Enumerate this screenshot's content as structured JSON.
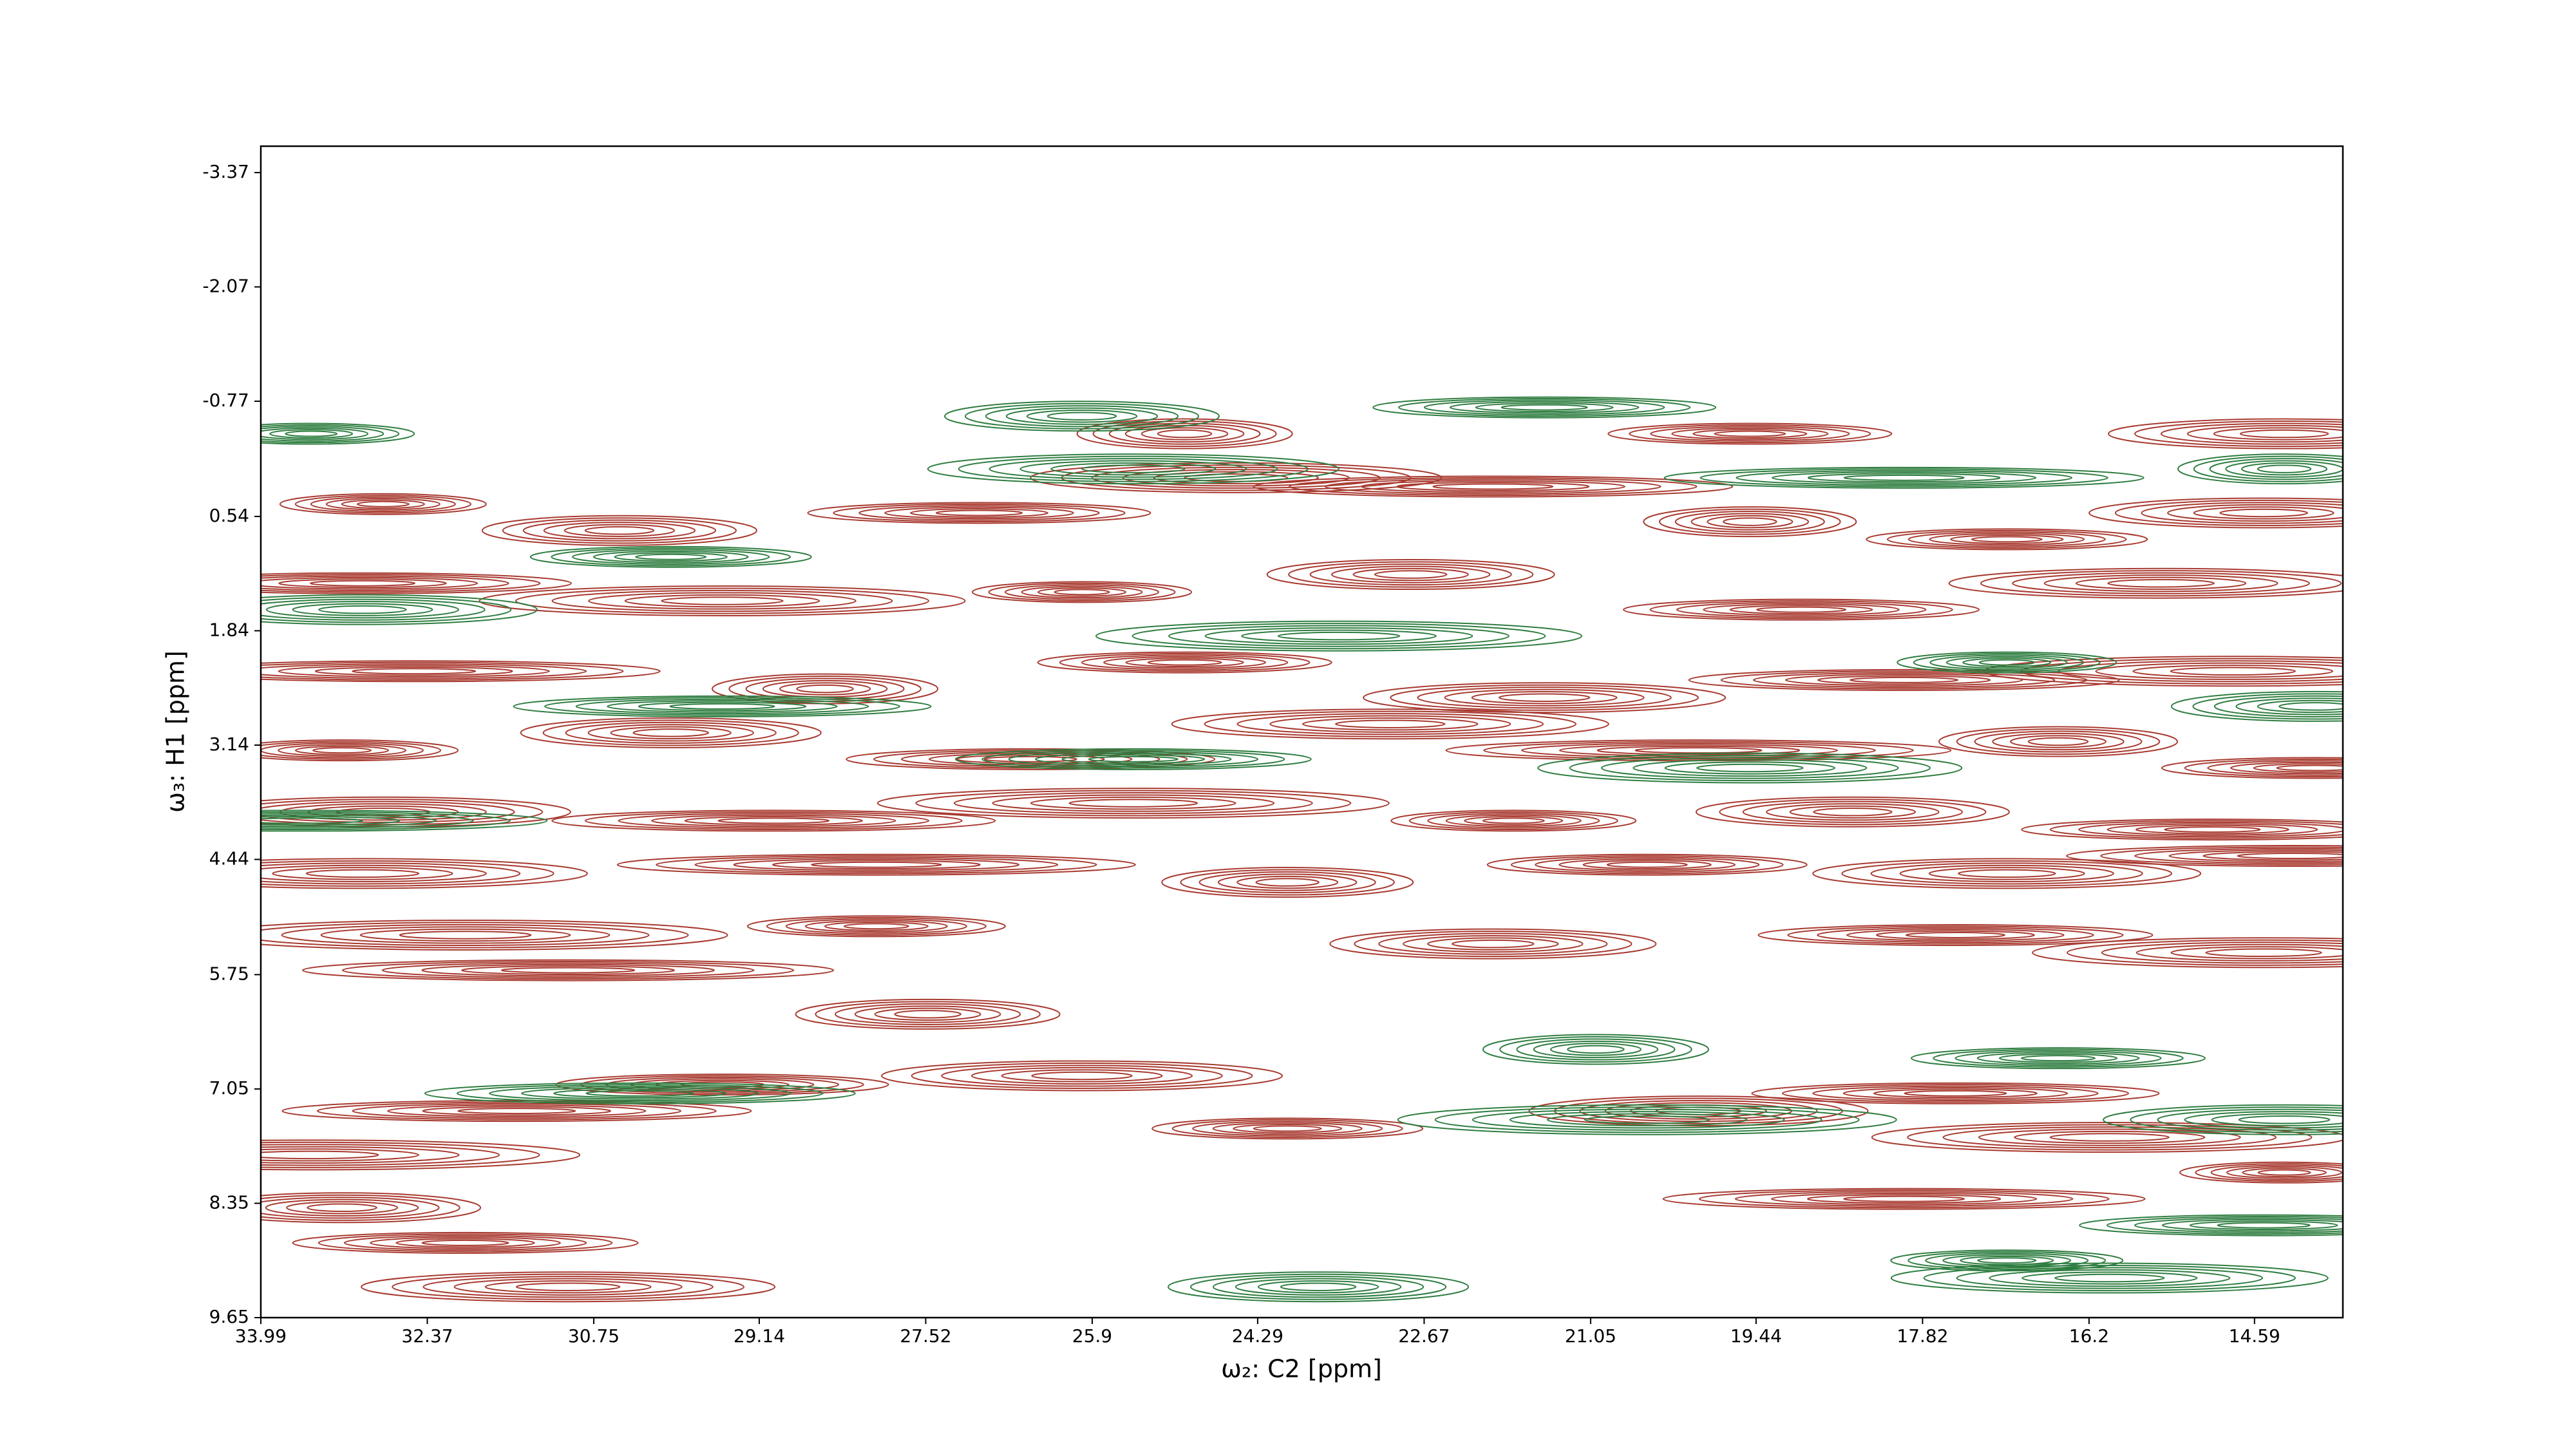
{
  "chart_data": {
    "type": "contour",
    "xlabel": "ω₂: C2 [ppm]",
    "ylabel": "ω₃: H1 [ppm]",
    "xlim": [
      33.99,
      13.73
    ],
    "ylim": [
      9.65,
      -3.67
    ],
    "xticks": [
      33.99,
      32.37,
      30.75,
      29.14,
      27.52,
      25.9,
      24.29,
      22.67,
      21.05,
      19.44,
      17.82,
      16.2,
      14.59
    ],
    "yticks": [
      -3.37,
      -2.07,
      -0.77,
      0.54,
      1.84,
      3.14,
      4.44,
      5.75,
      7.05,
      8.35,
      9.65
    ],
    "series": [
      {
        "color": "#a83a30",
        "x": [
          32.8,
          30.5,
          27.0,
          24.5,
          22.0,
          19.5,
          17.0,
          14.5,
          33.0,
          29.5,
          26.0,
          22.8,
          19.0,
          15.5,
          32.5,
          28.5,
          25.0,
          21.5,
          18.0,
          14.8,
          33.2,
          30.0,
          26.5,
          23.0,
          20.0,
          16.5,
          14.0,
          32.8,
          29.0,
          25.5,
          21.8,
          18.5,
          15.0,
          33.0,
          28.0,
          24.0,
          20.5,
          17.0,
          14.2,
          32.0,
          28.0,
          22.0,
          17.5,
          14.5,
          31.0,
          27.5,
          29.5,
          26.0,
          31.5,
          33.5,
          24.0,
          20.0,
          17.5,
          16.0,
          14.3,
          33.2,
          32.0,
          31.0,
          18.0,
          25.0,
          19.5,
          14.3
        ],
        "values": [
          0.4,
          0.7,
          0.5,
          0.1,
          0.2,
          0.6,
          0.8,
          0.5,
          1.3,
          1.5,
          1.4,
          1.2,
          1.6,
          1.3,
          2.3,
          2.5,
          2.2,
          2.6,
          2.4,
          2.3,
          3.2,
          3.0,
          3.3,
          2.9,
          3.2,
          3.1,
          3.4,
          3.9,
          4.0,
          3.8,
          4.0,
          3.9,
          4.1,
          4.6,
          4.5,
          4.7,
          4.5,
          4.6,
          4.4,
          5.3,
          5.2,
          5.4,
          5.3,
          5.5,
          5.7,
          6.2,
          7.0,
          6.9,
          7.3,
          7.8,
          7.5,
          7.3,
          7.1,
          7.6,
          8.0,
          8.4,
          8.8,
          9.3,
          8.3,
          -0.4,
          -0.4,
          -0.4
        ]
      },
      {
        "color": "#2e7d40",
        "x": [
          33.5,
          26.0,
          21.5,
          25.5,
          18.0,
          14.3,
          30.0,
          33.0,
          29.5,
          23.5,
          17.0,
          14.0,
          25.5,
          19.5,
          33.6,
          21.0,
          16.5,
          14.3,
          30.3,
          20.5,
          17.0,
          23.7,
          14.5,
          16.0
        ],
        "values": [
          -0.4,
          -0.6,
          -0.7,
          0.0,
          0.1,
          0.0,
          1.0,
          1.6,
          2.7,
          1.9,
          2.2,
          2.7,
          3.3,
          3.4,
          4.0,
          6.6,
          6.7,
          7.4,
          7.1,
          7.4,
          9.0,
          9.3,
          8.6,
          9.2
        ]
      }
    ]
  }
}
